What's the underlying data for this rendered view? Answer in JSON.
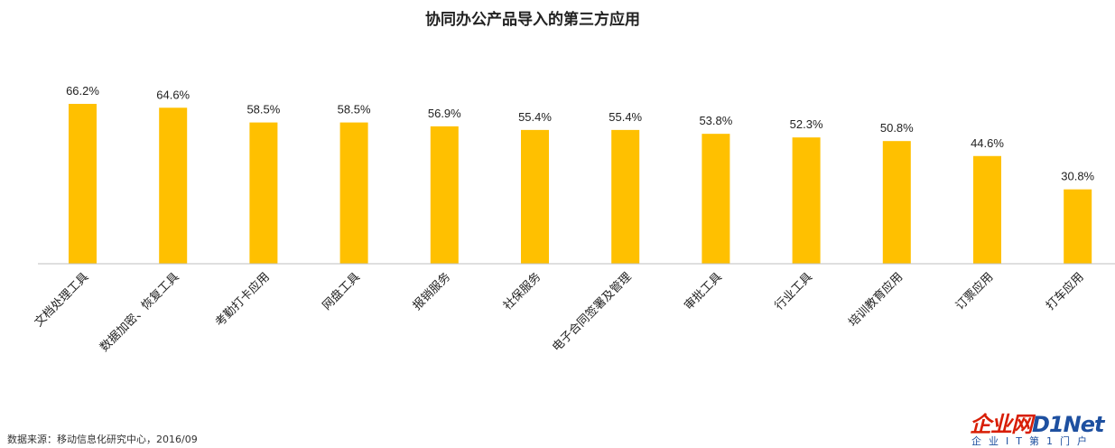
{
  "chart_data": {
    "type": "bar",
    "title": "协同办公产品导入的第三方应用",
    "categories": [
      "文档处理工具",
      "数据加密、恢复工具",
      "考勤打卡应用",
      "网盘工具",
      "报销服务",
      "社保服务",
      "电子合同签署及管理",
      "审批工具",
      "行业工具",
      "培训教育应用",
      "订票应用",
      "打车应用"
    ],
    "values": [
      66.2,
      64.6,
      58.5,
      58.5,
      56.9,
      55.4,
      55.4,
      53.8,
      52.3,
      50.8,
      44.6,
      30.8
    ],
    "value_labels": [
      "66.2%",
      "64.6%",
      "58.5%",
      "58.5%",
      "56.9%",
      "55.4%",
      "55.4%",
      "53.8%",
      "52.3%",
      "50.8%",
      "44.6%",
      "30.8%"
    ],
    "unit": "%",
    "ylim": [
      0,
      66.2
    ],
    "grid": false,
    "legend": "none",
    "bar_color": "#FFC000",
    "axis_color": "#BFBFBF"
  },
  "footer": {
    "source": "数据来源：移动信息化研究中心，2016/09"
  },
  "logo": {
    "main": "企业网",
    "net": "D1Net",
    "sub": "企业IT第1门户"
  }
}
